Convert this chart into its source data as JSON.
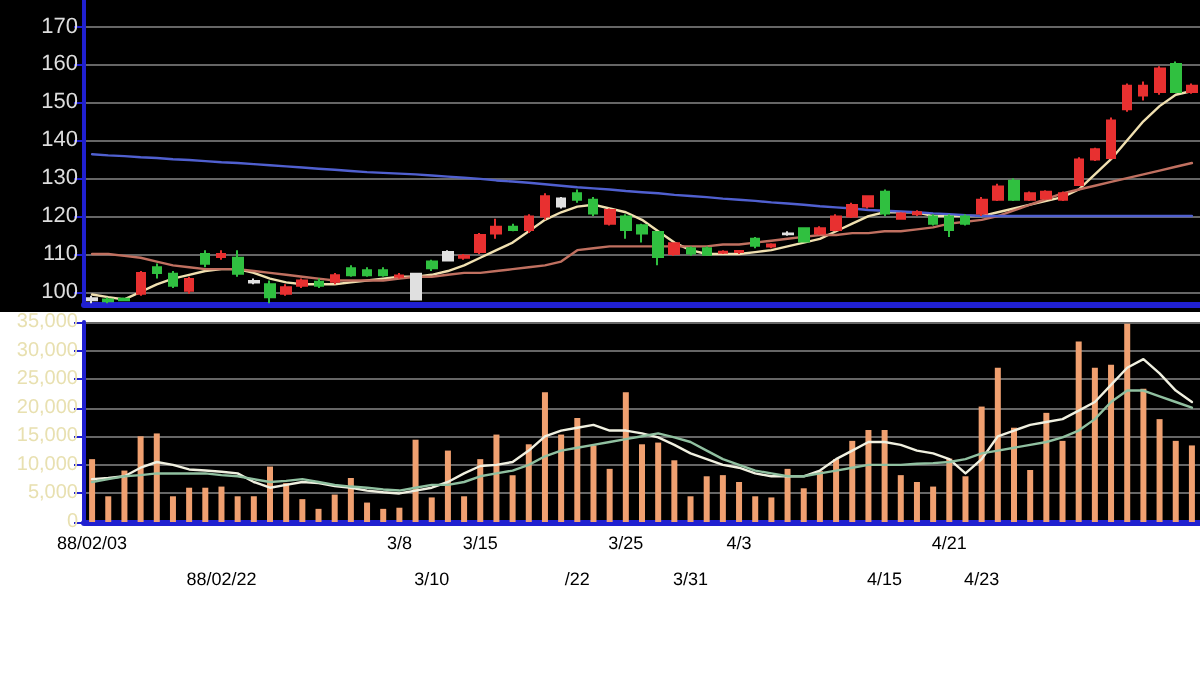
{
  "chart_data": [
    {
      "type": "candlestick",
      "categories": [
        null,
        null,
        null,
        null,
        null,
        null,
        null,
        null,
        null,
        null,
        null,
        null,
        null,
        null,
        null,
        null,
        null,
        null,
        null,
        null,
        null,
        null,
        null,
        null,
        null,
        null,
        null,
        null,
        null,
        null,
        null,
        null,
        null,
        null,
        null,
        null,
        null,
        null,
        null,
        null,
        null,
        null,
        null,
        null,
        null,
        null,
        null,
        null,
        null,
        null,
        null,
        null,
        null,
        null,
        null,
        null,
        null,
        null,
        null,
        null,
        null,
        null,
        null,
        null,
        null,
        null,
        null,
        null,
        null
      ],
      "ohlc": [
        [
          98.3,
          99,
          97,
          97.8
        ],
        [
          98,
          98.5,
          97,
          97.5
        ],
        [
          98.2,
          98.5,
          97.5,
          97.8
        ],
        [
          99.5,
          105.5,
          99,
          105
        ],
        [
          106.5,
          107.5,
          103.5,
          105
        ],
        [
          104.8,
          105.5,
          101,
          101.6
        ],
        [
          100.3,
          104,
          99.5,
          103.4
        ],
        [
          110,
          111,
          106.5,
          107.4
        ],
        [
          109.2,
          111,
          108.5,
          110
        ],
        [
          109,
          111,
          104,
          104.8
        ],
        [
          102.9,
          103.5,
          102,
          102.5
        ],
        [
          102,
          103,
          97,
          98.6
        ],
        [
          99.5,
          102,
          99,
          101.2
        ],
        [
          101.6,
          103.5,
          101,
          103
        ],
        [
          102.7,
          103.5,
          101,
          101.6
        ],
        [
          102.7,
          105,
          102,
          104.4
        ],
        [
          106.2,
          107,
          104,
          104.4
        ],
        [
          105.7,
          106.5,
          104,
          104.4
        ],
        [
          105.7,
          106.5,
          104,
          104.4
        ],
        [
          104,
          105,
          103.5,
          104.3
        ],
        [
          104.8,
          105,
          97.7,
          98
        ],
        [
          108,
          108.5,
          105.5,
          106.2
        ],
        [
          110.5,
          111,
          108,
          108.3
        ],
        [
          109,
          110,
          108.5,
          109.5
        ],
        [
          110.5,
          115.5,
          110,
          115
        ],
        [
          115.4,
          119.3,
          114,
          117.2
        ],
        [
          117.2,
          118,
          116,
          116.3
        ],
        [
          116.3,
          120.5,
          115.5,
          119.9
        ],
        [
          119.9,
          126,
          119,
          125.2
        ],
        [
          124.6,
          125,
          122,
          122.5
        ],
        [
          126,
          127,
          123.5,
          124.3
        ],
        [
          124.3,
          125,
          120,
          120.7
        ],
        [
          118,
          122,
          117.5,
          121.6
        ],
        [
          119.9,
          120.5,
          114,
          116.3
        ],
        [
          117.6,
          118,
          113,
          115.4
        ],
        [
          115.8,
          116,
          107,
          109.2
        ],
        [
          110,
          113,
          109.5,
          112.8
        ],
        [
          111.5,
          112,
          109.5,
          110.1
        ],
        [
          111.5,
          112,
          109.5,
          109.8
        ],
        [
          110.3,
          111,
          110,
          110.6
        ],
        [
          110.5,
          111,
          110,
          110.8
        ],
        [
          114,
          114.5,
          111.5,
          112.2
        ],
        [
          112,
          112.8,
          111.5,
          112.5
        ],
        [
          115.2,
          116,
          114.8,
          115.4
        ],
        [
          116.8,
          117,
          113,
          113.3
        ],
        [
          115.4,
          117.3,
          115,
          116.8
        ],
        [
          116.3,
          120.5,
          116,
          119.9
        ],
        [
          119.9,
          123.5,
          119.5,
          122.9
        ],
        [
          122.5,
          125.5,
          122,
          125.2
        ],
        [
          126.4,
          127,
          120,
          120.7
        ],
        [
          119.3,
          121,
          119,
          120.7
        ],
        [
          120.5,
          121.5,
          120,
          121
        ],
        [
          119.9,
          120.5,
          117.5,
          118
        ],
        [
          119.9,
          120.5,
          114.5,
          116.3
        ],
        [
          119.9,
          120.5,
          117.5,
          118
        ],
        [
          120.7,
          125,
          120,
          124.3
        ],
        [
          124.3,
          128.5,
          124,
          127.8
        ],
        [
          129.3,
          130,
          124,
          124.3
        ],
        [
          124.3,
          126.5,
          124,
          126
        ],
        [
          124.6,
          126.8,
          124.3,
          126.4
        ],
        [
          124.3,
          126.5,
          124,
          126
        ],
        [
          128.2,
          135.5,
          128,
          134.9
        ],
        [
          134.9,
          138,
          134.5,
          137.6
        ],
        [
          135.3,
          146,
          135,
          145.2
        ],
        [
          148.2,
          155,
          147.5,
          154.4
        ],
        [
          151.8,
          155.5,
          150.5,
          154.4
        ],
        [
          152.7,
          159.5,
          152,
          158.9
        ],
        [
          160.1,
          160.8,
          152.5,
          152.7
        ],
        [
          152.7,
          155,
          152.3,
          154.4
        ]
      ],
      "colors": [
        "#e0e0e0",
        "#30c040",
        "#30c040",
        "#e83030",
        "#30c040",
        "#30c040",
        "#e83030",
        "#30c040",
        "#e83030",
        "#30c040",
        "#e0e0e0",
        "#30c040",
        "#e83030",
        "#e83030",
        "#30c040",
        "#e83030",
        "#30c040",
        "#30c040",
        "#30c040",
        "#e83030",
        "#e0e0e0",
        "#30c040",
        "#e0e0e0",
        "#e83030",
        "#e83030",
        "#e83030",
        "#30c040",
        "#e83030",
        "#e83030",
        "#e0e0e0",
        "#30c040",
        "#30c040",
        "#e83030",
        "#30c040",
        "#30c040",
        "#30c040",
        "#e83030",
        "#30c040",
        "#30c040",
        "#e83030",
        "#e83030",
        "#30c040",
        "#e83030",
        "#e0e0e0",
        "#30c040",
        "#e83030",
        "#e83030",
        "#e83030",
        "#e83030",
        "#30c040",
        "#e83030",
        "#e83030",
        "#30c040",
        "#30c040",
        "#30c040",
        "#e83030",
        "#e83030",
        "#30c040",
        "#e83030",
        "#e83030",
        "#e83030",
        "#e83030",
        "#e83030",
        "#e83030",
        "#e83030",
        "#e83030",
        "#e83030",
        "#30c040",
        "#e83030"
      ],
      "series": [
        {
          "type": "line",
          "color": "#f0e0b0",
          "values": [
            99.3,
            98.6,
            98,
            100,
            102,
            103.5,
            104.5,
            105.5,
            106,
            106,
            105,
            103.5,
            102.5,
            102,
            102,
            102,
            102.5,
            103,
            103.5,
            104,
            104,
            104.5,
            105.5,
            107,
            109,
            111,
            113,
            116,
            119,
            121,
            122.5,
            123,
            122,
            121,
            119,
            116,
            113,
            111,
            110,
            110,
            110,
            110.5,
            111,
            112,
            113,
            114,
            116,
            118,
            120,
            121,
            121,
            121,
            120,
            120,
            120,
            120,
            121,
            122,
            123,
            124,
            125,
            127,
            131,
            135,
            140,
            145,
            149,
            152,
            153
          ]
        },
        {
          "type": "line",
          "color": "#c07060",
          "values": [
            110,
            110,
            109.5,
            109,
            108,
            107,
            106.5,
            106,
            106,
            106,
            105.5,
            105,
            104.5,
            104,
            103.5,
            103,
            103,
            103,
            103,
            103.5,
            104,
            104,
            104.5,
            105,
            105,
            105.5,
            106,
            106.5,
            107,
            108,
            111,
            111.5,
            112,
            112,
            112,
            112,
            112,
            112,
            112,
            112.5,
            112.5,
            113,
            113.5,
            114,
            114.5,
            115,
            115,
            115.5,
            115.5,
            116,
            116,
            116.5,
            117,
            118,
            118.5,
            119,
            120,
            121.5,
            123,
            124.5,
            126,
            127,
            128,
            129,
            130,
            131,
            132,
            133,
            134
          ]
        },
        {
          "type": "line",
          "color": "#5060d0",
          "values": [
            136.3,
            136,
            135.8,
            135.5,
            135.3,
            135,
            134.8,
            134.5,
            134.2,
            134,
            133.7,
            133.4,
            133.1,
            132.8,
            132.5,
            132.2,
            131.9,
            131.6,
            131.4,
            131.2,
            131,
            130.7,
            130.4,
            130.1,
            129.8,
            129.4,
            129.1,
            128.8,
            128.4,
            128,
            127.6,
            127.3,
            127,
            126.6,
            126.3,
            126,
            125.6,
            125.3,
            125,
            124.6,
            124.3,
            124,
            123.6,
            123.3,
            123,
            122.6,
            122.3,
            122,
            121.6,
            121.4,
            121.2,
            121,
            120.7,
            120.5,
            120.2,
            120,
            120,
            120,
            120,
            120,
            120,
            120,
            120,
            120,
            120,
            120,
            120,
            120,
            120
          ]
        }
      ],
      "ylim": [
        96.8,
        177
      ],
      "yticks": [
        100,
        110,
        120,
        130,
        140,
        150,
        160,
        170
      ],
      "grid": "y",
      "tick_labels": "y",
      "marker": "none",
      "line_style": "solid"
    },
    {
      "type": "bar",
      "categories": [
        "88/02/03",
        null,
        null,
        null,
        null,
        null,
        null,
        null,
        "88/02/22",
        null,
        null,
        null,
        null,
        null,
        null,
        null,
        null,
        null,
        null,
        "3/8",
        null,
        "3/10",
        null,
        null,
        "3/15",
        null,
        null,
        null,
        null,
        null,
        "/22",
        null,
        null,
        "3/25",
        null,
        null,
        null,
        "3/31",
        null,
        null,
        "4/3",
        null,
        null,
        null,
        null,
        null,
        null,
        null,
        null,
        "4/15",
        null,
        null,
        null,
        "4/21",
        null,
        "4/23",
        null,
        null,
        null,
        null,
        null,
        null,
        null,
        null,
        null,
        null,
        null,
        null,
        null
      ],
      "series": [
        {
          "type": "bar",
          "color": "#f0a070",
          "values": [
            11000,
            4500,
            9000,
            15000,
            15500,
            4500,
            6000,
            6000,
            6200,
            4500,
            4500,
            9700,
            6800,
            4000,
            2300,
            4800,
            7700,
            3400,
            2300,
            2500,
            14400,
            4300,
            12500,
            4500,
            11000,
            15300,
            8200,
            13600,
            22700,
            15300,
            18200,
            13400,
            9300,
            22700,
            13600,
            13900,
            10800,
            4500,
            8000,
            8200,
            7000,
            4500,
            4300,
            9300,
            5900,
            8900,
            11000,
            14200,
            16100,
            16100,
            8200,
            7000,
            6200,
            11100,
            8000,
            20200,
            27000,
            16500,
            9100,
            19100,
            14200,
            31600,
            27000,
            27500,
            34700,
            23300,
            18000,
            14200,
            13400
          ]
        },
        {
          "type": "line",
          "color": "#f0f0e0",
          "values": [
            7500,
            7700,
            8000,
            9500,
            10500,
            10000,
            9200,
            9000,
            8800,
            8500,
            7000,
            6000,
            6500,
            7000,
            6800,
            6300,
            6000,
            5500,
            5200,
            5000,
            5500,
            6000,
            7000,
            8500,
            9800,
            10000,
            10500,
            12500,
            15000,
            16000,
            16500,
            17000,
            16000,
            16000,
            15500,
            14800,
            13500,
            12000,
            11000,
            10000,
            9500,
            8500,
            8000,
            8000,
            8000,
            9000,
            11000,
            12500,
            14000,
            14000,
            13500,
            12500,
            12000,
            11000,
            8500,
            11000,
            15000,
            16000,
            17000,
            17500,
            18000,
            19500,
            21000,
            24000,
            27000,
            28500,
            26000,
            23000,
            21000
          ]
        },
        {
          "type": "line",
          "color": "#90c0a0",
          "values": [
            7000,
            7500,
            8000,
            8200,
            8500,
            8500,
            8500,
            8500,
            8200,
            8000,
            7500,
            7000,
            7200,
            7500,
            7000,
            6500,
            6200,
            6000,
            5700,
            5500,
            6000,
            6500,
            6500,
            7000,
            8000,
            8500,
            9000,
            10000,
            11500,
            12500,
            13000,
            13500,
            14000,
            14500,
            15000,
            15500,
            14800,
            14000,
            12500,
            11000,
            10000,
            9000,
            8500,
            8000,
            8000,
            8500,
            9000,
            9500,
            10000,
            10000,
            10000,
            10200,
            10300,
            10500,
            11000,
            12000,
            12500,
            13000,
            13500,
            14000,
            14800,
            16000,
            18000,
            21000,
            23000,
            23000,
            22000,
            21000,
            20000
          ]
        }
      ],
      "ylim": [
        0,
        35000
      ],
      "yticks": [
        0,
        {
          "value": 5000,
          "label": "5,000"
        },
        {
          "value": 10000,
          "label": "10,000"
        },
        {
          "value": 15000,
          "label": "15,000"
        },
        {
          "value": 20000,
          "label": "20,000"
        },
        {
          "value": 25000,
          "label": "25,000"
        },
        {
          "value": 30000,
          "label": "30,000"
        },
        {
          "value": 35000,
          "label": "35,000"
        }
      ],
      "grid": "y",
      "marker": "none",
      "line_style": "solid"
    }
  ]
}
